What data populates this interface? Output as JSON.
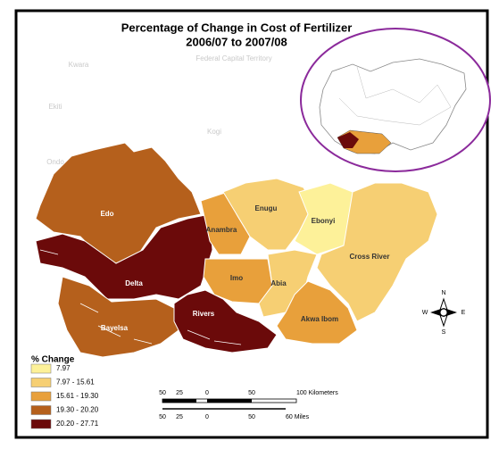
{
  "title": "Percentage of Change in Cost of Fertilizer",
  "subtitle": "2006/07 to 2007/08",
  "background_labels": [
    "Kwara",
    "Federal Capital Territory",
    "Ekiti",
    "Kogi",
    "Ondo"
  ],
  "regions": [
    {
      "name": "Edo",
      "class": 3
    },
    {
      "name": "Delta",
      "class": 4
    },
    {
      "name": "Bayelsa",
      "class": 3
    },
    {
      "name": "Rivers",
      "class": 4
    },
    {
      "name": "Anambra",
      "class": 2
    },
    {
      "name": "Enugu",
      "class": 1
    },
    {
      "name": "Ebonyi",
      "class": 0
    },
    {
      "name": "Imo",
      "class": 2
    },
    {
      "name": "Abia",
      "class": 1
    },
    {
      "name": "Cross River",
      "class": 1
    },
    {
      "name": "Akwa Ibom",
      "class": 2
    }
  ],
  "legend": {
    "title": "% Change",
    "classes": [
      {
        "label": "7.97",
        "color": "#fdf199"
      },
      {
        "label": "7.97 - 15.61",
        "color": "#f6cf73"
      },
      {
        "label": "15.61 - 19.30",
        "color": "#e8a03b"
      },
      {
        "label": "19.30 - 20.20",
        "color": "#b5601c"
      },
      {
        "label": "20.20 - 27.71",
        "color": "#6b0a0a"
      }
    ]
  },
  "scale_bar": {
    "km_labels": [
      "50",
      "25",
      "0",
      "50",
      "100 Kilometers"
    ],
    "mile_labels": [
      "50",
      "25",
      "0",
      "50",
      "60 Miles"
    ]
  },
  "compass": {
    "n": "N",
    "s": "S",
    "e": "E",
    "w": "W"
  }
}
